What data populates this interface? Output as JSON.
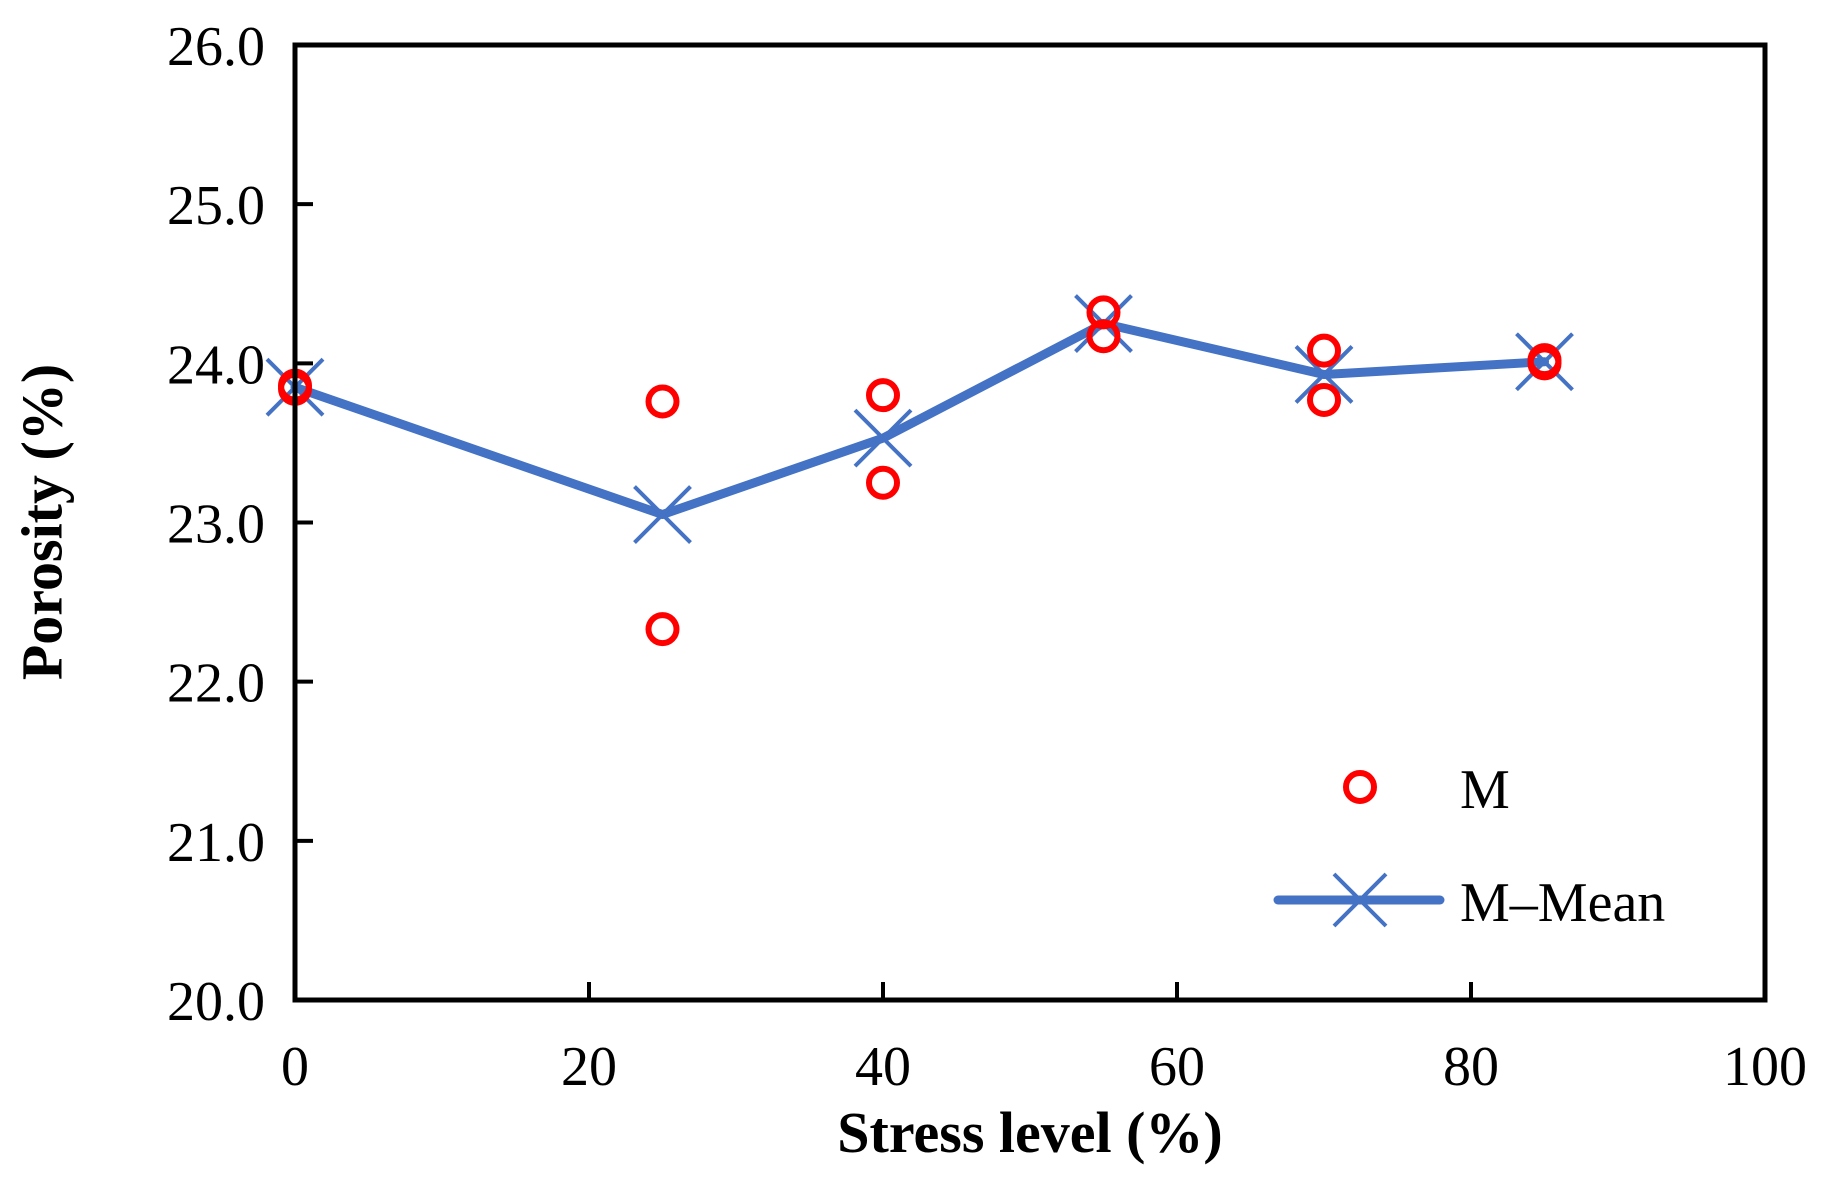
{
  "chart_data": {
    "type": "scatter",
    "title": "",
    "xlabel": "Stress level (%)",
    "ylabel": "Porosity (%)",
    "xlim": [
      0,
      100
    ],
    "ylim": [
      20.0,
      26.0
    ],
    "grid": false,
    "legend_position": "bottom-right",
    "x_ticks": [
      "0",
      "20",
      "40",
      "60",
      "80",
      "100"
    ],
    "y_ticks": [
      "20.0",
      "21.0",
      "22.0",
      "23.0",
      "24.0",
      "25.0",
      "26.0"
    ],
    "series": [
      {
        "name": "M",
        "style": "markers",
        "marker": "open-circle",
        "color": "#ff0000",
        "points": [
          {
            "x": 0,
            "y": 23.84
          },
          {
            "x": 0,
            "y": 23.86
          },
          {
            "x": 25,
            "y": 23.76
          },
          {
            "x": 25,
            "y": 22.33
          },
          {
            "x": 40,
            "y": 23.8
          },
          {
            "x": 40,
            "y": 23.25
          },
          {
            "x": 55,
            "y": 24.32
          },
          {
            "x": 55,
            "y": 24.17
          },
          {
            "x": 70,
            "y": 24.08
          },
          {
            "x": 70,
            "y": 23.77
          },
          {
            "x": 85,
            "y": 24.02
          },
          {
            "x": 85,
            "y": 24.0
          }
        ]
      },
      {
        "name": "M–Mean",
        "style": "line-markers",
        "marker": "x",
        "color": "#4472c4",
        "points": [
          {
            "x": 0,
            "y": 23.85
          },
          {
            "x": 25,
            "y": 23.05
          },
          {
            "x": 40,
            "y": 23.53
          },
          {
            "x": 55,
            "y": 24.25
          },
          {
            "x": 70,
            "y": 23.93
          },
          {
            "x": 85,
            "y": 24.01
          }
        ]
      }
    ]
  }
}
